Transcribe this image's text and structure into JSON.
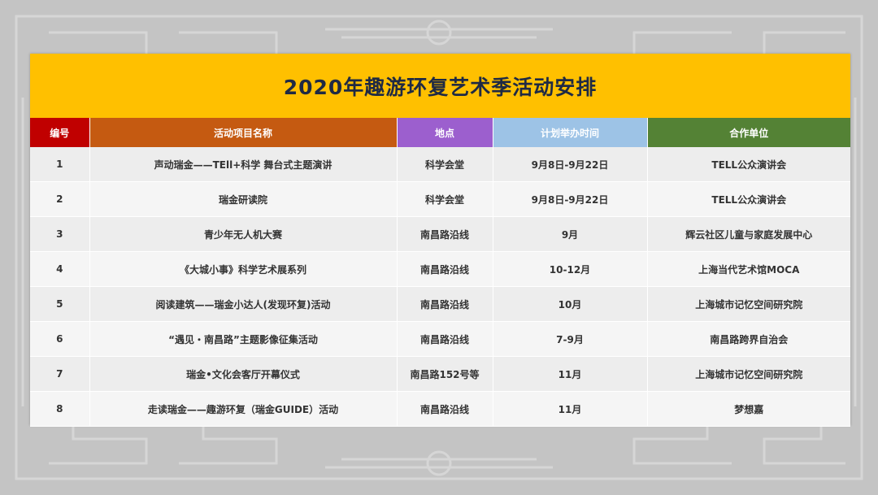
{
  "title": "2020年趣游环复艺术季活动安排",
  "colors": {
    "title_bg": "#ffc000",
    "col_no": "#c00000",
    "col_name": "#c55a11",
    "col_place": "#9c5fce",
    "col_time": "#9dc3e6",
    "col_partner": "#548235",
    "background": "#c4c4c4"
  },
  "headers": [
    "编号",
    "活动项目名称",
    "地点",
    "计划举办时间",
    "合作单位"
  ],
  "rows": [
    [
      "1",
      "声动瑞金——TEll+科学 舞台式主题演讲",
      "科学会堂",
      "9月8日-9月22日",
      "TELL公众演讲会"
    ],
    [
      "2",
      "瑞金研读院",
      "科学会堂",
      "9月8日-9月22日",
      "TELL公众演讲会"
    ],
    [
      "3",
      "青少年无人机大赛",
      "南昌路沿线",
      "9月",
      "辉云社区儿童与家庭发展中心"
    ],
    [
      "4",
      "《大城小事》科学艺术展系列",
      "南昌路沿线",
      "10-12月",
      "上海当代艺术馆MOCA"
    ],
    [
      "5",
      "阅读建筑——瑞金小达人(发现环复)活动",
      "南昌路沿线",
      "10月",
      "上海城市记忆空间研究院"
    ],
    [
      "6",
      "“遇见・南昌路”主题影像征集活动",
      "南昌路沿线",
      "7-9月",
      "南昌路跨界自治会"
    ],
    [
      "7",
      "瑞金•文化会客厅开幕仪式",
      "南昌路152号等",
      "11月",
      "上海城市记忆空间研究院"
    ],
    [
      "8",
      "走读瑞金——趣游环复（瑞金GUIDE）活动",
      "南昌路沿线",
      "11月",
      "梦想嘉"
    ]
  ]
}
